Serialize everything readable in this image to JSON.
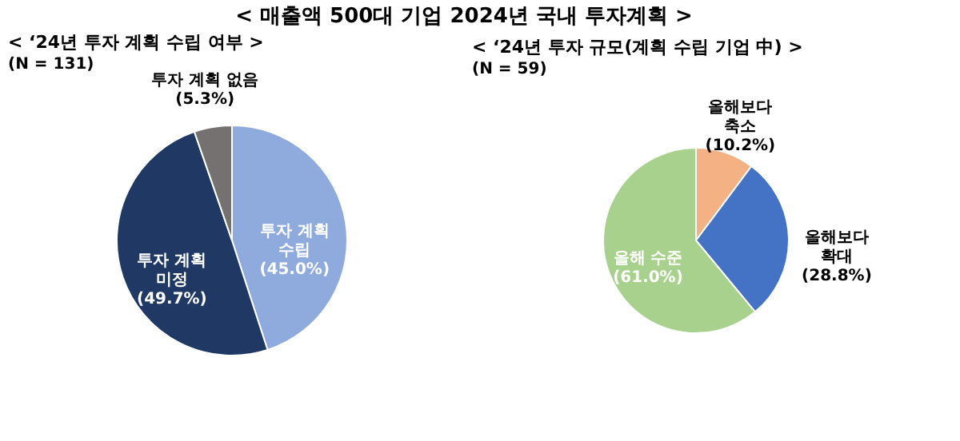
{
  "chart_data": [
    {
      "type": "other",
      "title": "< 매출액 500대 기업 2024년 국내 투자계획 >"
    },
    {
      "type": "pie",
      "title": "< ‘24년 투자 계획 수립 여부 >",
      "subtitle": "(N = 131)",
      "categories": [
        "투자 계획\n수립",
        "투자 계획\n미정",
        "투자 계획 없음"
      ],
      "values": [
        45.0,
        49.7,
        5.3
      ],
      "value_labels": [
        "(45.0%)",
        "(49.7%)",
        "(5.3%)"
      ],
      "colors": [
        "#8faadc",
        "#203864",
        "#767171"
      ]
    },
    {
      "type": "pie",
      "title": "< ‘24년 투자 규모(계획 수립 기업 中) >",
      "subtitle": "(N = 59)",
      "categories": [
        "올해보다\n축소",
        "올해보다\n확대",
        "올해 수준"
      ],
      "values": [
        10.2,
        28.8,
        61.0
      ],
      "value_labels": [
        "(10.2%)",
        "(28.8%)",
        "(61.0%)"
      ],
      "colors": [
        "#f4b183",
        "#4472c4",
        "#a9d18e"
      ]
    }
  ]
}
